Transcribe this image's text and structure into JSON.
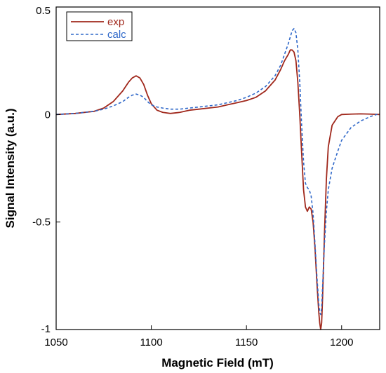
{
  "chart_data": {
    "type": "line",
    "title": "",
    "xlabel": "Magnetic Field (mT)",
    "ylabel": "Signal Intensity (a.u.)",
    "xlim": [
      1050,
      1220
    ],
    "ylim": [
      -1.0,
      0.5
    ],
    "xticks": [
      1050,
      1100,
      1150,
      1200
    ],
    "yticks": [
      0.5,
      0,
      -0.5,
      -1
    ],
    "ytick_labels": [
      "0.5",
      "0",
      "-0.5",
      "-1"
    ],
    "grid": false,
    "legend_position": "top-left",
    "series": [
      {
        "name": "exp",
        "color": "#a0281c",
        "dash": "solid",
        "x": [
          1050,
          1060,
          1070,
          1075,
          1080,
          1085,
          1088,
          1090,
          1092,
          1094,
          1096,
          1098,
          1100,
          1103,
          1106,
          1110,
          1115,
          1120,
          1125,
          1130,
          1135,
          1140,
          1145,
          1150,
          1155,
          1160,
          1165,
          1168,
          1170,
          1172,
          1173,
          1174,
          1175,
          1176,
          1177,
          1178,
          1179,
          1180,
          1181,
          1182,
          1183,
          1184,
          1185,
          1186,
          1187,
          1188,
          1188.5,
          1189,
          1189.5,
          1190,
          1191,
          1192,
          1193,
          1195,
          1198,
          1200,
          1205,
          1210,
          1215,
          1220
        ],
        "y": [
          0.0,
          0.005,
          0.015,
          0.03,
          0.06,
          0.11,
          0.15,
          0.17,
          0.18,
          0.17,
          0.14,
          0.09,
          0.05,
          0.02,
          0.01,
          0.005,
          0.01,
          0.02,
          0.025,
          0.03,
          0.035,
          0.045,
          0.055,
          0.065,
          0.08,
          0.11,
          0.16,
          0.21,
          0.25,
          0.28,
          0.3,
          0.3,
          0.29,
          0.25,
          0.15,
          0.0,
          -0.18,
          -0.35,
          -0.43,
          -0.45,
          -0.43,
          -0.44,
          -0.5,
          -0.62,
          -0.78,
          -0.92,
          -0.97,
          -1.0,
          -0.97,
          -0.85,
          -0.55,
          -0.3,
          -0.15,
          -0.05,
          -0.01,
          0.0,
          0.002,
          0.003,
          0.002,
          0.0
        ]
      },
      {
        "name": "calc",
        "color": "#2f68c9",
        "dash": "dashed",
        "x": [
          1050,
          1060,
          1070,
          1075,
          1080,
          1085,
          1088,
          1090,
          1092,
          1094,
          1096,
          1098,
          1100,
          1103,
          1106,
          1110,
          1115,
          1120,
          1125,
          1130,
          1135,
          1140,
          1145,
          1150,
          1155,
          1160,
          1165,
          1168,
          1170,
          1172,
          1173,
          1174,
          1175,
          1176,
          1177,
          1178,
          1179,
          1180,
          1181,
          1182,
          1183,
          1184,
          1185,
          1186,
          1187,
          1188,
          1188.5,
          1189,
          1189.5,
          1190,
          1191,
          1192,
          1193,
          1195,
          1198,
          1200,
          1205,
          1210,
          1215,
          1220
        ],
        "y": [
          0.0,
          0.005,
          0.015,
          0.025,
          0.04,
          0.06,
          0.08,
          0.09,
          0.095,
          0.09,
          0.08,
          0.06,
          0.045,
          0.035,
          0.03,
          0.025,
          0.025,
          0.03,
          0.035,
          0.04,
          0.045,
          0.055,
          0.065,
          0.08,
          0.1,
          0.13,
          0.18,
          0.23,
          0.28,
          0.33,
          0.36,
          0.39,
          0.4,
          0.38,
          0.3,
          0.15,
          -0.05,
          -0.22,
          -0.32,
          -0.34,
          -0.35,
          -0.38,
          -0.46,
          -0.6,
          -0.75,
          -0.88,
          -0.92,
          -0.93,
          -0.9,
          -0.8,
          -0.6,
          -0.45,
          -0.35,
          -0.25,
          -0.17,
          -0.12,
          -0.06,
          -0.03,
          -0.01,
          0.005
        ]
      }
    ]
  }
}
